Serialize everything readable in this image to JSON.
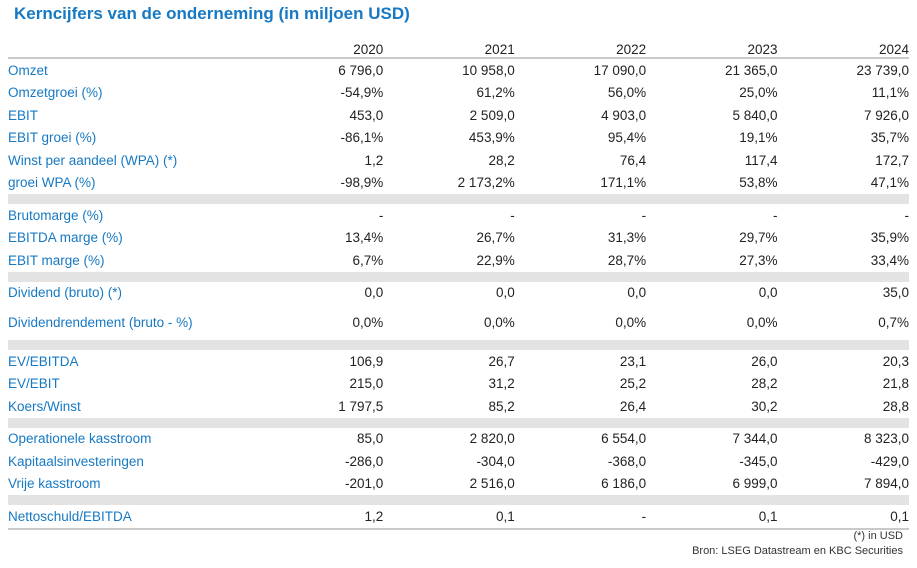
{
  "title": "Kerncijfers van de onderneming (in miljoen USD)",
  "years": [
    "2020",
    "2021",
    "2022",
    "2023",
    "2024"
  ],
  "groups": [
    [
      {
        "label": "Omzet",
        "values": [
          "6 796,0",
          "10 958,0",
          "17 090,0",
          "21 365,0",
          "23 739,0"
        ]
      },
      {
        "label": "Omzetgroei (%)",
        "values": [
          "-54,9%",
          "61,2%",
          "56,0%",
          "25,0%",
          "11,1%"
        ]
      },
      {
        "label": "EBIT",
        "values": [
          "453,0",
          "2 509,0",
          "4 903,0",
          "5 840,0",
          "7 926,0"
        ]
      },
      {
        "label": "EBIT groei (%)",
        "values": [
          "-86,1%",
          "453,9%",
          "95,4%",
          "19,1%",
          "35,7%"
        ]
      },
      {
        "label": "Winst per aandeel (WPA) (*)",
        "values": [
          "1,2",
          "28,2",
          "76,4",
          "117,4",
          "172,7"
        ]
      },
      {
        "label": "groei WPA (%)",
        "values": [
          "-98,9%",
          "2 173,2%",
          "171,1%",
          "53,8%",
          "47,1%"
        ]
      }
    ],
    [
      {
        "label": "Brutomarge (%)",
        "values": [
          "-",
          "-",
          "-",
          "-",
          "-"
        ]
      },
      {
        "label": "EBITDA marge (%)",
        "values": [
          "13,4%",
          "26,7%",
          "31,3%",
          "29,7%",
          "35,9%"
        ]
      },
      {
        "label": "EBIT marge (%)",
        "values": [
          "6,7%",
          "22,9%",
          "28,7%",
          "27,3%",
          "33,4%"
        ]
      }
    ],
    [
      {
        "label": "Dividend (bruto) (*)",
        "values": [
          "0,0",
          "0,0",
          "0,0",
          "0,0",
          "35,0"
        ]
      },
      {
        "label": "Dividendrendement (bruto - %)",
        "values": [
          "0,0%",
          "0,0%",
          "0,0%",
          "0,0%",
          "0,7%"
        ]
      }
    ],
    [
      {
        "label": "EV/EBITDA",
        "values": [
          "106,9",
          "26,7",
          "23,1",
          "26,0",
          "20,3"
        ]
      },
      {
        "label": "EV/EBIT",
        "values": [
          "215,0",
          "31,2",
          "25,2",
          "28,2",
          "21,8"
        ]
      },
      {
        "label": "Koers/Winst",
        "values": [
          "1 797,5",
          "85,2",
          "26,4",
          "30,2",
          "28,8"
        ]
      }
    ],
    [
      {
        "label": "Operationele kasstroom",
        "values": [
          "85,0",
          "2 820,0",
          "6 554,0",
          "7 344,0",
          "8 323,0"
        ]
      },
      {
        "label": "Kapitaalsinvesteringen",
        "values": [
          "-286,0",
          "-304,0",
          "-368,0",
          "-345,0",
          "-429,0"
        ]
      },
      {
        "label": "Vrije kasstroom",
        "values": [
          "-201,0",
          "2 516,0",
          "6 186,0",
          "6 999,0",
          "7 894,0"
        ]
      }
    ],
    [
      {
        "label": "Nettoschuld/EBITDA",
        "values": [
          "1,2",
          "0,1",
          "-",
          "0,1",
          "0,1"
        ]
      }
    ]
  ],
  "footnote": "(*) in USD",
  "source": "Bron: LSEG Datastream en KBC Securities"
}
